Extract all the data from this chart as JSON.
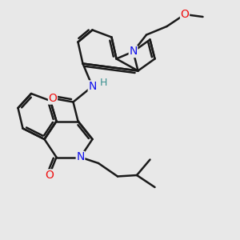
{
  "background_color": "#e8e8e8",
  "bond_color": "#1a1a1a",
  "bond_width": 1.8,
  "atom_colors": {
    "N_indole": "#1010ee",
    "N_amide": "#1010ee",
    "N_iq": "#1010ee",
    "O_amide": "#ee1010",
    "O_methoxy": "#ee1010",
    "O_ketone": "#ee1010",
    "H": "#3a9090"
  },
  "font_size": 10,
  "fig_width": 3.0,
  "fig_height": 3.0,
  "dpi": 100,
  "xlim": [
    0,
    10
  ],
  "ylim": [
    0,
    10
  ]
}
